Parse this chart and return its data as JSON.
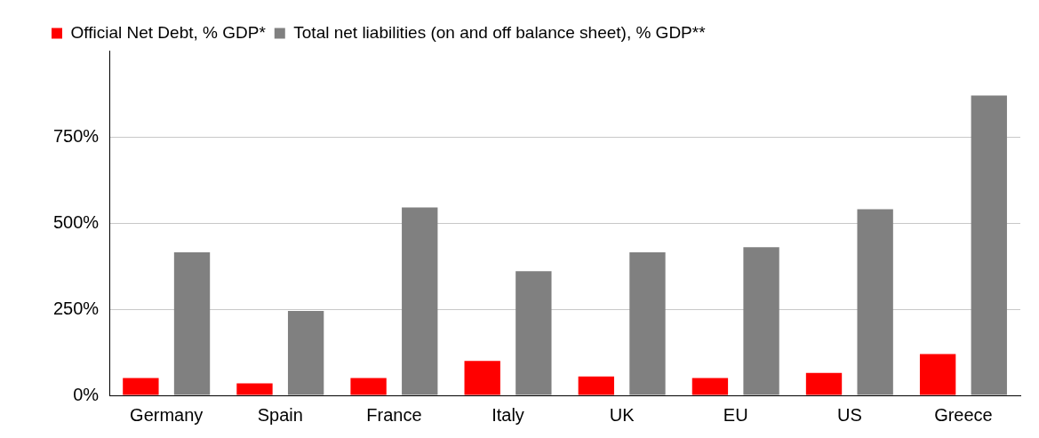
{
  "chart_data": {
    "type": "bar",
    "categories": [
      "Germany",
      "Spain",
      "France",
      "Italy",
      "UK",
      "EU",
      "US",
      "Greece"
    ],
    "series": [
      {
        "name": "Official Net Debt, % GDP*",
        "color": "#ff0000",
        "values": [
          50,
          35,
          50,
          100,
          55,
          50,
          65,
          120
        ]
      },
      {
        "name": "Total net liabilities (on and off balance sheet), % GDP**",
        "color": "#808080",
        "values": [
          415,
          245,
          545,
          360,
          415,
          430,
          540,
          870
        ]
      }
    ],
    "ylim": [
      0,
      1000
    ],
    "yticks": [
      {
        "value": 0,
        "label": "0%"
      },
      {
        "value": 250,
        "label": "250%"
      },
      {
        "value": 500,
        "label": "500%"
      },
      {
        "value": 750,
        "label": "750%"
      }
    ],
    "grid": "y",
    "legend": "top"
  }
}
